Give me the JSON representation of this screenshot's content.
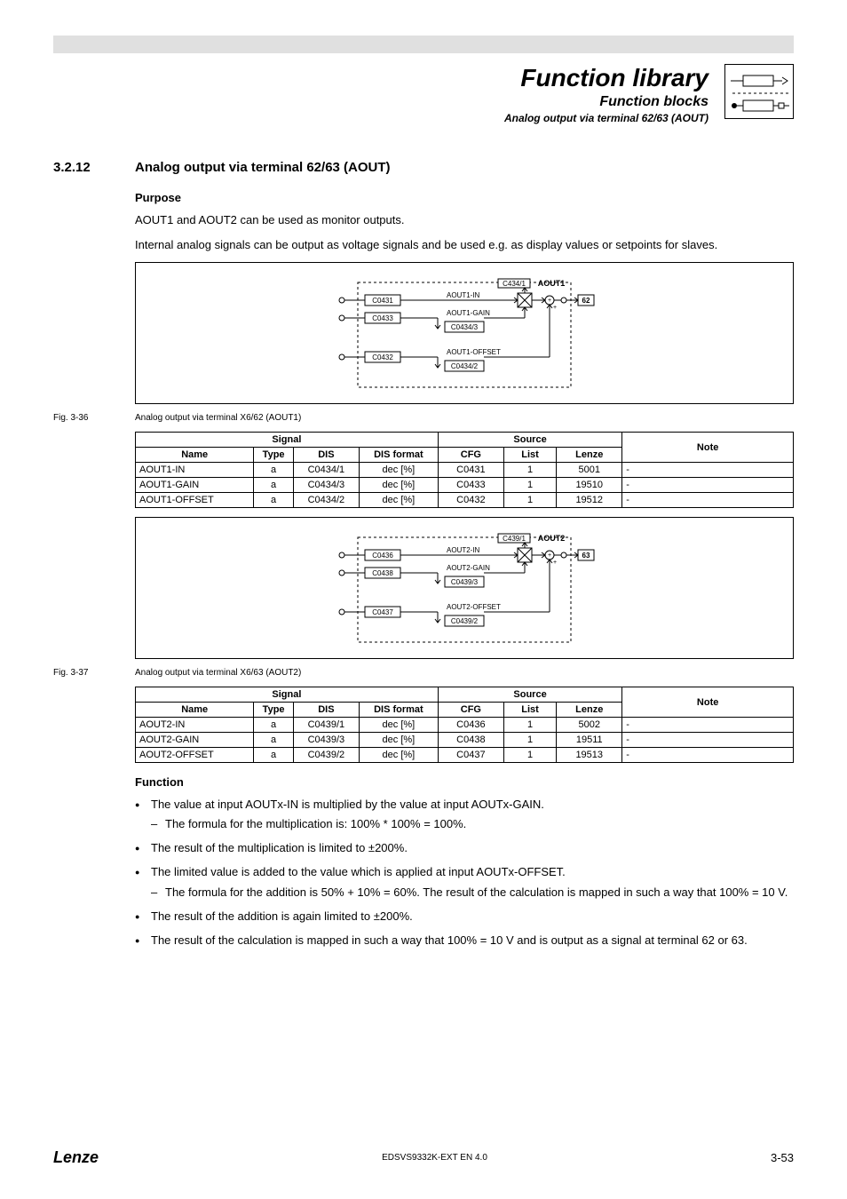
{
  "header": {
    "title": "Function library",
    "subtitle": "Function blocks",
    "subtitle2": "Analog output via terminal 62/63 (AOUT)"
  },
  "section": {
    "number": "3.2.12",
    "title": "Analog output via terminal 62/63 (AOUT)"
  },
  "purpose": {
    "heading": "Purpose",
    "p1": "AOUT1 and AOUT2 can be used as monitor outputs.",
    "p2": "Internal analog signals can be output as voltage signals and be used e.g. as display values or setpoints for slaves."
  },
  "diagram1": {
    "block_name": "AOUT1",
    "block_code": "C434/1",
    "terminal": "62",
    "in_code": "C0431",
    "in_label": "AOUT1-IN",
    "gain_code": "C0433",
    "gain_label": "AOUT1-GAIN",
    "gain_ref": "C0434/3",
    "offset_code": "C0432",
    "offset_label": "AOUT1-OFFSET",
    "offset_ref": "C0434/2",
    "colors": {
      "line": "#000000",
      "dash": "#000000",
      "fill": "#ffffff"
    }
  },
  "fig1": {
    "label": "Fig. 3-36",
    "caption": "Analog output via terminal X6/62 (AOUT1)"
  },
  "table1": {
    "headers": {
      "signal": "Signal",
      "source": "Source",
      "note": "Note",
      "name": "Name",
      "type": "Type",
      "dis": "DIS",
      "disf": "DIS format",
      "cfg": "CFG",
      "list": "List",
      "lenze": "Lenze"
    },
    "rows": [
      {
        "name": "AOUT1-IN",
        "type": "a",
        "dis": "C0434/1",
        "disf": "dec [%]",
        "cfg": "C0431",
        "list": "1",
        "lenze": "5001",
        "note": "-"
      },
      {
        "name": "AOUT1-GAIN",
        "type": "a",
        "dis": "C0434/3",
        "disf": "dec [%]",
        "cfg": "C0433",
        "list": "1",
        "lenze": "19510",
        "note": "-"
      },
      {
        "name": "AOUT1-OFFSET",
        "type": "a",
        "dis": "C0434/2",
        "disf": "dec [%]",
        "cfg": "C0432",
        "list": "1",
        "lenze": "19512",
        "note": "-"
      }
    ],
    "col_widths": [
      "18%",
      "6%",
      "10%",
      "12%",
      "10%",
      "8%",
      "10%",
      "26%"
    ]
  },
  "diagram2": {
    "block_name": "AOUT2",
    "block_code": "C439/1",
    "terminal": "63",
    "in_code": "C0436",
    "in_label": "AOUT2-IN",
    "gain_code": "C0438",
    "gain_label": "AOUT2-GAIN",
    "gain_ref": "C0439/3",
    "offset_code": "C0437",
    "offset_label": "AOUT2-OFFSET",
    "offset_ref": "C0439/2",
    "colors": {
      "line": "#000000",
      "dash": "#000000",
      "fill": "#ffffff"
    }
  },
  "fig2": {
    "label": "Fig. 3-37",
    "caption": "Analog output via terminal X6/63 (AOUT2)"
  },
  "table2": {
    "headers": {
      "signal": "Signal",
      "source": "Source",
      "note": "Note",
      "name": "Name",
      "type": "Type",
      "dis": "DIS",
      "disf": "DIS format",
      "cfg": "CFG",
      "list": "List",
      "lenze": "Lenze"
    },
    "rows": [
      {
        "name": "AOUT2-IN",
        "type": "a",
        "dis": "C0439/1",
        "disf": "dec  [%]",
        "cfg": "C0436",
        "list": "1",
        "lenze": "5002",
        "note": "-"
      },
      {
        "name": "AOUT2-GAIN",
        "type": "a",
        "dis": "C0439/3",
        "disf": "dec  [%]",
        "cfg": "C0438",
        "list": "1",
        "lenze": "19511",
        "note": "-"
      },
      {
        "name": "AOUT2-OFFSET",
        "type": "a",
        "dis": "C0439/2",
        "disf": "dec  [%]",
        "cfg": "C0437",
        "list": "1",
        "lenze": "19513",
        "note": "-"
      }
    ],
    "col_widths": [
      "18%",
      "6%",
      "10%",
      "12%",
      "10%",
      "8%",
      "10%",
      "26%"
    ]
  },
  "function": {
    "heading": "Function",
    "b1": "The value at input AOUTx-IN is multiplied by the value at input AOUTx-GAIN.",
    "b1s": "The formula for the multiplication is: 100% * 100% = 100%.",
    "b2": "The result of the multiplication is limited to ±200%.",
    "b3": "The limited value is added to the value which is applied at input AOUTx-OFFSET.",
    "b3s": "The formula for the addition is 50% + 10% = 60%. The result of the calculation is mapped in such a way that 100% = 10 V.",
    "b4": "The result of the addition is again limited to ±200%.",
    "b5": "The result of the calculation is mapped in such a way that 100% = 10 V and is output as a signal at terminal 62 or 63."
  },
  "footer": {
    "logo": "Lenze",
    "mid": "EDSVS9332K-EXT EN 4.0",
    "page": "3-53"
  }
}
